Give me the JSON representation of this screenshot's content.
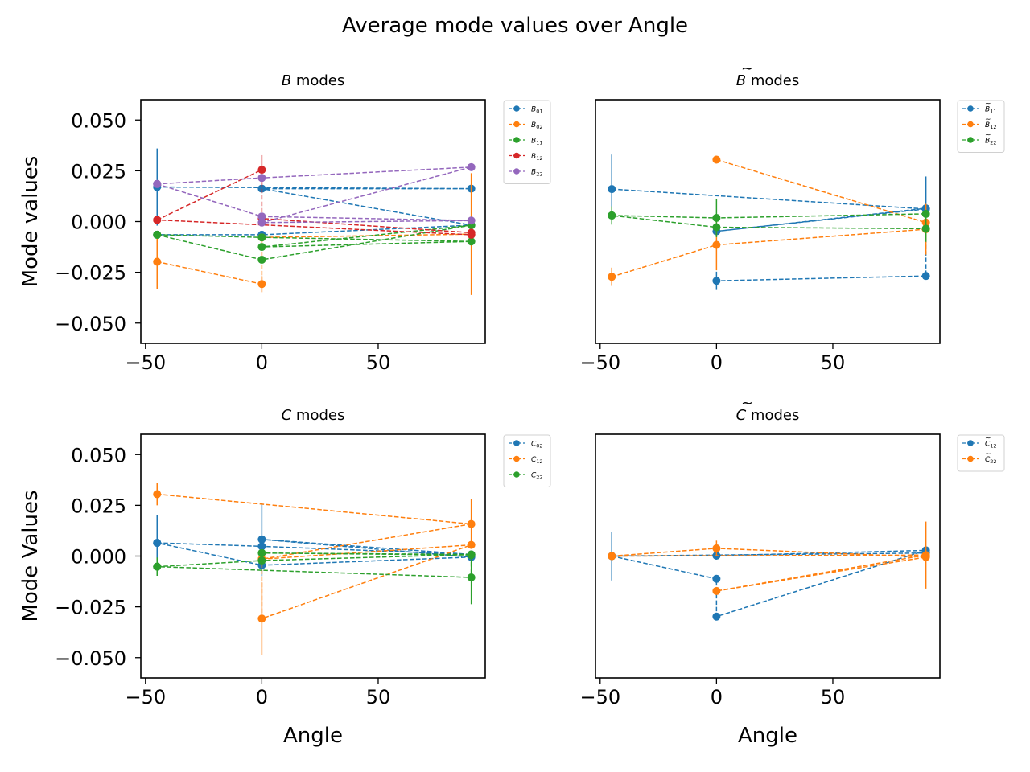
{
  "figure": {
    "title": "Average mode values over Angle"
  },
  "colors": {
    "C0": "#1f77b4",
    "C1": "#ff7f0e",
    "C2": "#2ca02c",
    "C3": "#d62728",
    "C4": "#9467bd"
  },
  "chart_data": [
    {
      "type": "line",
      "title": "B modes",
      "title_prefix": "B",
      "title_suffix": " modes",
      "title_tilde": false,
      "xlabel": "",
      "ylabel": "Mode values",
      "xlim": [
        -52,
        96
      ],
      "ylim": [
        -0.06,
        0.06
      ],
      "xticks": [
        -50,
        0,
        50
      ],
      "xtick_labels": [
        "−50",
        "0",
        "50"
      ],
      "yticks": [
        0.05,
        0.025,
        0.0,
        -0.025,
        -0.05
      ],
      "ytick_labels": [
        "0.050",
        "0.025",
        "0.000",
        "−0.025",
        "−0.050"
      ],
      "legend_position": "outside-right",
      "series": [
        {
          "name": "B01",
          "legend_base": "B",
          "legend_sub": "01",
          "tilde": false,
          "color": "C0",
          "points": [
            [
              -45,
              0.017,
              0.019
            ],
            [
              90,
              0.0162,
              0.0
            ],
            [
              0,
              0.0162,
              0.0
            ],
            [
              90,
              -0.0018,
              0.0
            ],
            [
              0,
              -0.0065,
              0.0
            ],
            [
              -45,
              -0.0065,
              0.0
            ]
          ]
        },
        {
          "name": "B02",
          "legend_base": "B",
          "legend_sub": "02",
          "tilde": false,
          "color": "C1",
          "points": [
            [
              -45,
              -0.0198,
              0.0135
            ],
            [
              0,
              -0.0308,
              0.004
            ],
            [
              0,
              -0.0078,
              0.0
            ],
            [
              90,
              -0.0062,
              0.03
            ]
          ]
        },
        {
          "name": "B11",
          "legend_base": "B",
          "legend_sub": "11",
          "tilde": false,
          "color": "C2",
          "points": [
            [
              -45,
              -0.0065,
              0.0
            ],
            [
              0,
              -0.0078,
              0.0
            ],
            [
              90,
              -0.0098,
              0.0
            ],
            [
              0,
              -0.0125,
              0.0
            ],
            [
              90,
              -0.0018,
              0.0
            ],
            [
              0,
              -0.0188,
              0.0
            ],
            [
              -45,
              -0.0065,
              0.0
            ]
          ]
        },
        {
          "name": "B12",
          "legend_base": "B",
          "legend_sub": "12",
          "tilde": false,
          "color": "C3",
          "points": [
            [
              -45,
              0.0008,
              0.0
            ],
            [
              0,
              0.0255,
              0.0072
            ],
            [
              0,
              0.0015,
              0.0
            ],
            [
              90,
              -0.0055,
              0.0
            ],
            [
              90,
              -0.0065,
              0.0
            ],
            [
              -45,
              0.0008,
              0.0
            ]
          ]
        },
        {
          "name": "B22",
          "legend_base": "B",
          "legend_sub": "22",
          "tilde": false,
          "color": "C4",
          "points": [
            [
              -45,
              0.0185,
              0.0
            ],
            [
              0,
              0.0025,
              0.0
            ],
            [
              90,
              0.0005,
              0.0
            ],
            [
              0,
              -0.0005,
              0.0
            ],
            [
              90,
              0.0268,
              0.0
            ],
            [
              0,
              0.0215,
              0.0
            ],
            [
              -45,
              0.0185,
              0.0
            ]
          ]
        }
      ]
    },
    {
      "type": "line",
      "title": "B̃ modes",
      "title_prefix": "B",
      "title_suffix": " modes",
      "title_tilde": true,
      "xlabel": "",
      "ylabel": "",
      "xlim": [
        -52,
        96
      ],
      "ylim": [
        -0.06,
        0.06
      ],
      "xticks": [
        -50,
        0,
        50
      ],
      "xtick_labels": [
        "−50",
        "0",
        "50"
      ],
      "yticks": [],
      "ytick_labels": [],
      "legend_position": "outside-right",
      "series": [
        {
          "name": "B̃ 11",
          "legend_base": "B",
          "legend_sub": "11",
          "tilde": true,
          "color": "C0",
          "points": [
            [
              -45,
              0.016,
              0.017
            ],
            [
              90,
              0.0062,
              0.016
            ],
            [
              0,
              -0.0048,
              0.0
            ],
            [
              90,
              0.0065,
              0.0
            ],
            [
              90,
              -0.0268,
              0.0
            ],
            [
              0,
              -0.0292,
              0.0045
            ]
          ]
        },
        {
          "name": "B̃ 12",
          "legend_base": "B",
          "legend_sub": "12",
          "tilde": true,
          "color": "C1",
          "points": [
            [
              0,
              0.0305,
              0.0
            ],
            [
              90,
              -0.0005,
              0.0
            ],
            [
              90,
              -0.0038,
              0.0125
            ],
            [
              0,
              -0.0115,
              0.0125
            ],
            [
              -45,
              -0.0272,
              0.0045
            ]
          ]
        },
        {
          "name": "B̃ 22",
          "legend_base": "B",
          "legend_sub": "22",
          "tilde": true,
          "color": "C2",
          "points": [
            [
              -45,
              0.003,
              0.0045
            ],
            [
              0,
              0.0018,
              0.0095
            ],
            [
              90,
              0.0038,
              0.0
            ],
            [
              90,
              -0.0035,
              0.0065
            ],
            [
              0,
              -0.0028,
              0.0
            ],
            [
              -45,
              0.003,
              0.0
            ]
          ]
        }
      ]
    },
    {
      "type": "line",
      "title": "C modes",
      "title_prefix": "C",
      "title_suffix": " modes",
      "title_tilde": false,
      "xlabel": "Angle",
      "ylabel": "Mode Values",
      "xlim": [
        -52,
        96
      ],
      "ylim": [
        -0.06,
        0.06
      ],
      "xticks": [
        -50,
        0,
        50
      ],
      "xtick_labels": [
        "−50",
        "0",
        "50"
      ],
      "yticks": [
        0.05,
        0.025,
        0.0,
        -0.025,
        -0.05
      ],
      "ytick_labels": [
        "0.050",
        "0.025",
        "0.000",
        "−0.025",
        "−0.050"
      ],
      "legend_position": "outside-right",
      "series": [
        {
          "name": "C02",
          "legend_base": "C",
          "legend_sub": "02",
          "tilde": false,
          "color": "C0",
          "points": [
            [
              -45,
              0.0065,
              0.0135
            ],
            [
              0,
              0.0048,
              0.0
            ],
            [
              90,
              0.0008,
              0.0
            ],
            [
              0,
              0.0082,
              0.018
            ],
            [
              90,
              -0.0005,
              0.0
            ],
            [
              0,
              -0.0045,
              0.0
            ],
            [
              -45,
              0.0065,
              0.0
            ]
          ]
        },
        {
          "name": "C12",
          "legend_base": "C",
          "legend_sub": "12",
          "tilde": false,
          "color": "C1",
          "points": [
            [
              -45,
              0.0305,
              0.0055
            ],
            [
              90,
              0.0158,
              0.0122
            ],
            [
              0,
              -0.0015,
              0.0
            ],
            [
              90,
              0.0055,
              0.0
            ],
            [
              0,
              -0.0308,
              0.018
            ],
            [
              0,
              -0.0015,
              0.0
            ]
          ]
        },
        {
          "name": "C22",
          "legend_base": "C",
          "legend_sub": "22",
          "tilde": false,
          "color": "C2",
          "points": [
            [
              -45,
              -0.0052,
              0.0045
            ],
            [
              0,
              -0.0022,
              0.0
            ],
            [
              90,
              0.0008,
              0.0
            ],
            [
              0,
              0.0015,
              0.0
            ],
            [
              90,
              0.0005,
              0.0
            ],
            [
              90,
              -0.0105,
              0.0132
            ],
            [
              -45,
              -0.0052,
              0.0
            ]
          ]
        }
      ]
    },
    {
      "type": "line",
      "title": "C̃ modes",
      "title_prefix": "C",
      "title_suffix": " modes",
      "title_tilde": true,
      "xlabel": "Angle",
      "ylabel": "",
      "xlim": [
        -52,
        96
      ],
      "ylim": [
        -0.06,
        0.06
      ],
      "xticks": [
        -50,
        0,
        50
      ],
      "xtick_labels": [
        "−50",
        "0",
        "50"
      ],
      "yticks": [],
      "ytick_labels": [],
      "legend_position": "outside-right",
      "series": [
        {
          "name": "C̃ 12",
          "legend_base": "C",
          "legend_sub": "12",
          "tilde": true,
          "color": "C0",
          "points": [
            [
              -45,
              0.0,
              0.012
            ],
            [
              0,
              -0.0112,
              0.0
            ],
            [
              0,
              -0.0298,
              0.0
            ],
            [
              90,
              0.0028,
              0.0
            ],
            [
              0,
              0.0002,
              0.0
            ],
            [
              -45,
              0.0,
              0.0
            ],
            [
              90,
              0.0015,
              0.0
            ]
          ]
        },
        {
          "name": "C̃ 22",
          "legend_base": "C",
          "legend_sub": "22",
          "tilde": true,
          "color": "C1",
          "points": [
            [
              -45,
              0.0,
              0.0
            ],
            [
              0,
              0.0038,
              0.0038
            ],
            [
              90,
              -0.0005,
              0.0
            ],
            [
              0,
              -0.0172,
              0.0
            ],
            [
              90,
              0.0005,
              0.0165
            ],
            [
              -45,
              0.0,
              0.0
            ]
          ]
        }
      ]
    }
  ]
}
